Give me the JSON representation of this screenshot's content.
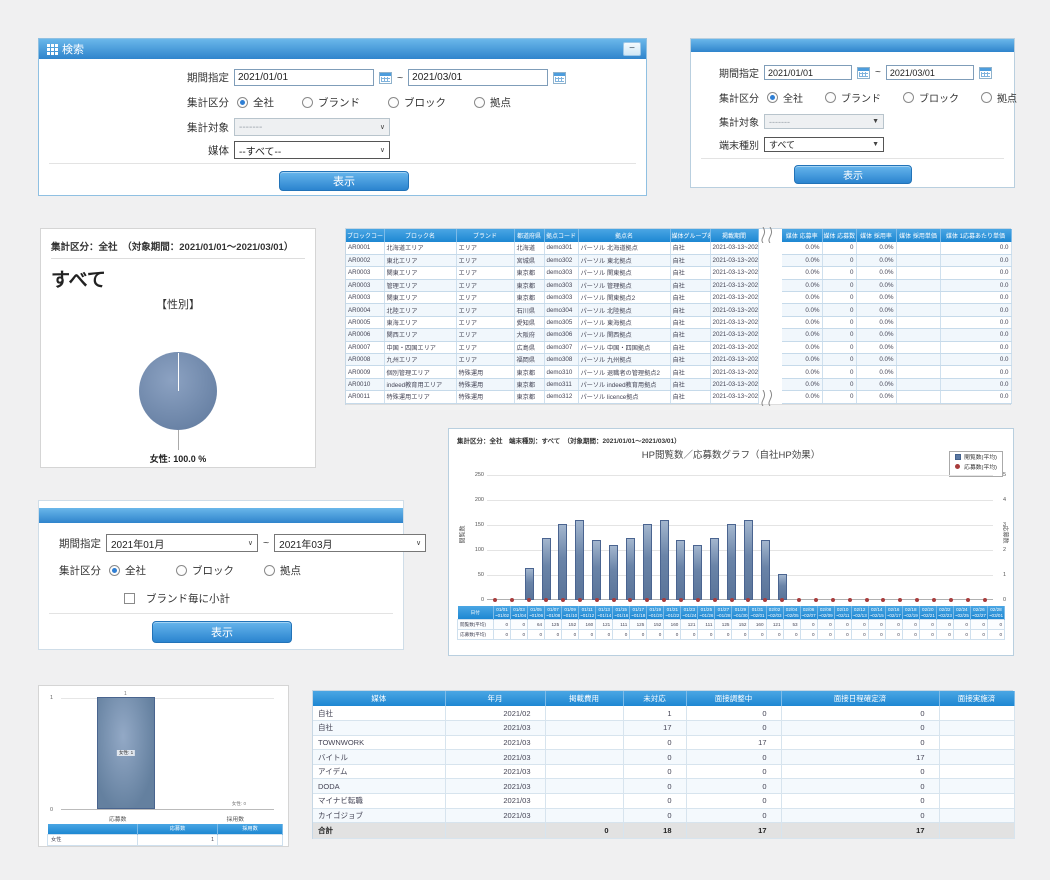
{
  "page": {
    "bg": "#f0f0f1"
  },
  "colors": {
    "header_blue_top": "#6ab7ea",
    "header_blue_bottom": "#2f84cc",
    "table_header_top": "#4aa6e4",
    "table_header_bottom": "#1d87d2",
    "button_top": "#66b5ec",
    "button_bottom": "#2b84cf",
    "bar_fill": "#6a84a8",
    "pie_fill": "#7189ae",
    "dot_red": "#a83c3c",
    "accent_blue": "#2f7fd4",
    "total_row_bg": "#e2e2e2"
  },
  "icons": {
    "minimize": "−",
    "tilde": "~",
    "dropdown_arrow": "▼",
    "chevron_down": "∨"
  },
  "search_media_panel": {
    "title": "検索",
    "period_label": "期間指定",
    "period_from": "2021/01/01",
    "period_to": "2021/03/01",
    "category_label": "集計区分",
    "category_options": [
      "全社",
      "ブランド",
      "ブロック",
      "拠点"
    ],
    "category_selected": "全社",
    "target_label": "集計対象",
    "target_value": "-------",
    "media_label": "媒体",
    "media_value": "--すべて--",
    "submit": "表示"
  },
  "search_device_panel": {
    "period_label": "期間指定",
    "period_from": "2021/01/01",
    "period_to": "2021/03/01",
    "category_label": "集計区分",
    "category_options": [
      "全社",
      "ブランド",
      "ブロック",
      "拠点"
    ],
    "category_selected": "全社",
    "target_label": "集計対象",
    "target_value": "-------",
    "device_label": "端末種別",
    "device_value": "すべて",
    "submit": "表示"
  },
  "gender_pie_panel": {
    "header": "集計区分：全社　（対象期間：2021/01/01～2021/03/01）",
    "subtitle": "すべて",
    "chart_title": "【性別】",
    "slice_label": "女性: 100.0 %"
  },
  "block_table_panel": {
    "columns": [
      "ブロックコード",
      "ブロック名",
      "ブランド",
      "都道府県",
      "拠点コード",
      "拠点名",
      "媒体グループ名",
      "掲載期間",
      "媒体 応募率",
      "媒体 応募数",
      "媒体 採用率",
      "媒体 採用単価",
      "媒体 1応募あたり単価"
    ],
    "rows": [
      [
        "AR0001",
        "北海道エリア",
        "エリア",
        "北海道",
        "demo301",
        "パーソル 北海道拠点",
        "自社",
        "2021-03-13~2022-0",
        "0.0%",
        "0",
        "0.0%",
        "",
        "0.0"
      ],
      [
        "AR0002",
        "東北エリア",
        "エリア",
        "宮城県",
        "demo302",
        "パーソル 東北拠点",
        "自社",
        "2021-03-13~2022-0",
        "0.0%",
        "0",
        "0.0%",
        "",
        "0.0"
      ],
      [
        "AR0003",
        "関東エリア",
        "エリア",
        "東京都",
        "demo303",
        "パーソル 関東拠点",
        "自社",
        "2021-03-13~2022-0",
        "0.0%",
        "0",
        "0.0%",
        "",
        "0.0"
      ],
      [
        "AR0003",
        "管理エリア",
        "エリア",
        "東京都",
        "demo303",
        "パーソル 管理拠点",
        "自社",
        "2021-03-13~2022-0",
        "0.0%",
        "0",
        "0.0%",
        "",
        "0.0"
      ],
      [
        "AR0003",
        "関東エリア",
        "エリア",
        "東京都",
        "demo303",
        "パーソル 関東拠点2",
        "自社",
        "2021-03-13~2022-0",
        "0.0%",
        "0",
        "0.0%",
        "",
        "0.0"
      ],
      [
        "AR0004",
        "北陸エリア",
        "エリア",
        "石川県",
        "demo304",
        "パーソル 北陸拠点",
        "自社",
        "2021-03-13~2022-0",
        "0.0%",
        "0",
        "0.0%",
        "",
        "0.0"
      ],
      [
        "AR0005",
        "東海エリア",
        "エリア",
        "愛知県",
        "demo305",
        "パーソル 東海拠点",
        "自社",
        "2021-03-13~2022-0",
        "0.0%",
        "0",
        "0.0%",
        "",
        "0.0"
      ],
      [
        "AR0006",
        "関西エリア",
        "エリア",
        "大阪府",
        "demo306",
        "パーソル 関西拠点",
        "自社",
        "2021-03-13~2022-0",
        "0.0%",
        "0",
        "0.0%",
        "",
        "0.0"
      ],
      [
        "AR0007",
        "中国・四国エリア",
        "エリア",
        "広島県",
        "demo307",
        "パーソル 中国・四国拠点",
        "自社",
        "2021-03-13~2022-0",
        "0.0%",
        "0",
        "0.0%",
        "",
        "0.0"
      ],
      [
        "AR0008",
        "九州エリア",
        "エリア",
        "福岡県",
        "demo308",
        "パーソル 九州拠点",
        "自社",
        "2021-03-13~2022-0",
        "0.0%",
        "0",
        "0.0%",
        "",
        "0.0"
      ],
      [
        "AR0009",
        "個別管理エリア",
        "特殊運用",
        "東京都",
        "demo310",
        "パーソル 退職者の管理拠点2",
        "自社",
        "2021-03-13~2022-0",
        "0.0%",
        "0",
        "0.0%",
        "",
        "0.0"
      ],
      [
        "AR0010",
        "indeed教育用エリア",
        "特殊運用",
        "東京都",
        "demo311",
        "パーソル indeed教育用拠点",
        "自社",
        "2021-03-13~2022-0",
        "0.0%",
        "0",
        "0.0%",
        "",
        "0.0"
      ],
      [
        "AR0011",
        "特殊運用エリア",
        "特殊運用",
        "東京都",
        "demo312",
        "パーソル licence拠点",
        "自社",
        "2021-03-13~2022-0",
        "0.0%",
        "0",
        "0.0%",
        "",
        "0.0"
      ]
    ]
  },
  "hp_chart_panel": {
    "header": "集計区分：全社　端末種別：すべて　（対象期間：2021/01/01～2021/03/01）",
    "corner_label": "日付"
  },
  "search_month_panel": {
    "period_label": "期間指定",
    "period_from": "2021年01月",
    "period_to": "2021年03月",
    "category_label": "集計区分",
    "category_options": [
      "全社",
      "ブロック",
      "拠点"
    ],
    "category_selected": "全社",
    "subtotal_label": "ブランド毎に小計",
    "subtotal_checked": false,
    "submit": "表示"
  },
  "apply_chart_panel": {
    "bar_label": "女性: 1",
    "bar_value_label": "1",
    "zero_label": "女性: 0",
    "table_columns": [
      "",
      "応募数",
      "採用数"
    ],
    "table_row": [
      "女性",
      "1",
      ""
    ]
  },
  "media_status_panel": {
    "columns": [
      "媒体",
      "年月",
      "掲載費用",
      "未対応",
      "面接調整中",
      "面接日程確定済",
      "面接実施済"
    ],
    "rows": [
      [
        "自社",
        "2021/02",
        "",
        "1",
        "0",
        "0",
        ""
      ],
      [
        "自社",
        "2021/03",
        "",
        "17",
        "0",
        "0",
        ""
      ],
      [
        "TOWNWORK",
        "2021/03",
        "",
        "0",
        "17",
        "0",
        ""
      ],
      [
        "バイトル",
        "2021/03",
        "",
        "0",
        "0",
        "17",
        ""
      ],
      [
        "アイデム",
        "2021/03",
        "",
        "0",
        "0",
        "0",
        ""
      ],
      [
        "DODA",
        "2021/03",
        "",
        "0",
        "0",
        "0",
        ""
      ],
      [
        "マイナビ転職",
        "2021/03",
        "",
        "0",
        "0",
        "0",
        ""
      ],
      [
        "カイゴジョブ",
        "2021/03",
        "",
        "0",
        "0",
        "0",
        ""
      ]
    ],
    "total_row": [
      "合計",
      "",
      "0",
      "18",
      "17",
      "17",
      ""
    ]
  },
  "chart_data": [
    {
      "type": "pie",
      "title": "【性別】",
      "labels": [
        "女性"
      ],
      "values": [
        100.0
      ],
      "unit": "%",
      "colors": [
        "#7189ae"
      ]
    },
    {
      "type": "bar",
      "title": "HP閲覧数／応募数グラフ（自社HP効果）",
      "categories": [
        "01/01~01/02",
        "01/03~01/04",
        "01/05~01/06",
        "01/07~01/08",
        "01/09~01/10",
        "01/11~01/12",
        "01/13~01/14",
        "01/15~01/16",
        "01/17~01/18",
        "01/19~01/20",
        "01/21~01/22",
        "01/23~01/24",
        "01/25~01/26",
        "01/27~01/28",
        "01/29~01/30",
        "01/31~02/01",
        "02/02~02/03",
        "02/04~02/05",
        "02/06~02/07",
        "02/08~02/09",
        "02/10~02/11",
        "02/12~02/13",
        "02/14~02/15",
        "02/16~02/17",
        "02/18~02/19",
        "02/20~02/21",
        "02/22~02/23",
        "02/24~02/25",
        "02/26~02/27",
        "02/28~03/01"
      ],
      "series": [
        {
          "name": "閲覧数(平均)",
          "type": "bar",
          "axis": "left",
          "values": [
            0,
            0,
            64,
            125,
            152,
            160,
            121,
            111,
            125,
            152,
            160,
            121,
            111,
            125,
            152,
            160,
            121,
            53,
            0,
            0,
            0,
            0,
            0,
            0,
            0,
            0,
            0,
            0,
            0,
            0
          ]
        },
        {
          "name": "応募数(平均)",
          "type": "scatter",
          "axis": "right",
          "values": [
            0,
            0,
            0,
            0,
            0,
            0,
            0,
            0,
            0,
            0,
            0,
            0,
            0,
            0,
            0,
            0,
            0,
            0,
            0,
            0,
            0,
            0,
            0,
            0,
            0,
            0,
            0,
            0,
            0,
            0
          ]
        }
      ],
      "ylabel": "閲覧数",
      "y2label": "応募数",
      "ylim": [
        0,
        250
      ],
      "y2lim": [
        0,
        5
      ],
      "yticks": [
        0,
        50,
        100,
        150,
        200,
        250
      ],
      "y2ticks": [
        0,
        1,
        2,
        3,
        4,
        5
      ],
      "grid": true,
      "legend_position": "top-right"
    },
    {
      "type": "bar",
      "categories": [
        "応募数",
        "採用数"
      ],
      "series": [
        {
          "name": "女性",
          "values": [
            1,
            0
          ]
        }
      ],
      "ylim": [
        0,
        1
      ],
      "yticks": [
        0,
        1
      ]
    }
  ]
}
